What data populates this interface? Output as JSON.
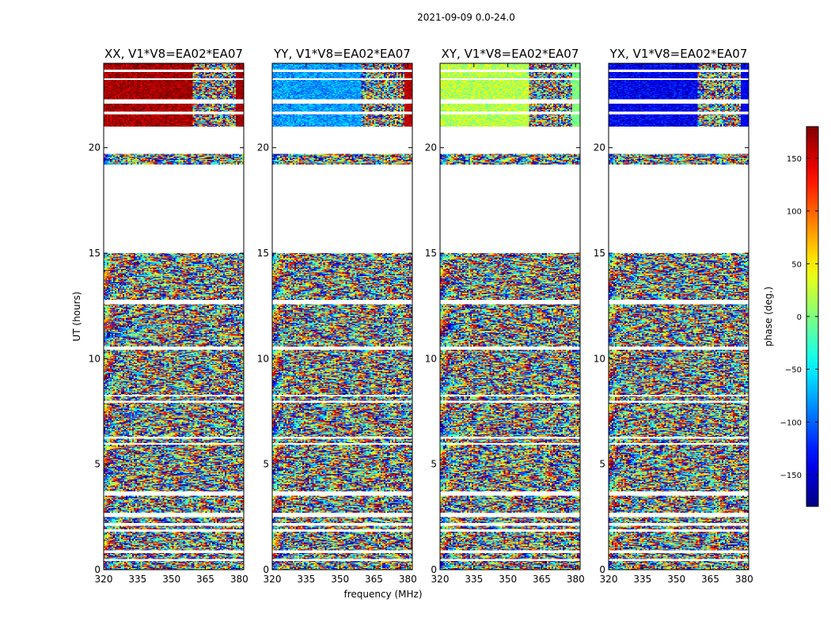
{
  "chart_data": {
    "type": "heatmap",
    "suptitle": "2021-09-09 0.0-24.0",
    "xlabel": "frequency (MHz)",
    "ylabel": "UT (hours)",
    "xlim": [
      320,
      382
    ],
    "ylim": [
      0,
      24
    ],
    "xticks": [
      320,
      335,
      350,
      365,
      380
    ],
    "yticks": [
      0,
      5,
      10,
      15,
      20
    ],
    "panels": [
      {
        "title": "XX, V1*V8=EA02*EA07",
        "pol": "XX",
        "lowband_phase": 170,
        "lowband_end_mhz": 359,
        "highband_phase": 170
      },
      {
        "title": "YY, V1*V8=EA02*EA07",
        "pol": "YY",
        "lowband_phase": -80,
        "lowband_end_mhz": 359,
        "highband_phase": 160
      },
      {
        "title": "XY, V1*V8=EA02*EA07",
        "pol": "XY",
        "lowband_phase": 20,
        "lowband_end_mhz": 359,
        "highband_phase": 0
      },
      {
        "title": "YX, V1*V8=EA02*EA07",
        "pol": "YX",
        "lowband_phase": -140,
        "lowband_end_mhz": 359,
        "highband_phase": -140
      }
    ],
    "blank_ut_ranges": [
      [
        19.1,
        19.2
      ],
      [
        19.7,
        21.0
      ],
      [
        15.0,
        19.1
      ],
      [
        12.6,
        12.8
      ],
      [
        10.4,
        10.6
      ],
      [
        8.2,
        8.3
      ],
      [
        7.9,
        8.0
      ],
      [
        6.2,
        6.3
      ],
      [
        5.9,
        6.0
      ],
      [
        3.5,
        3.7
      ],
      [
        2.5,
        2.7
      ],
      [
        2.1,
        2.2
      ],
      [
        1.8,
        1.9
      ],
      [
        0.8,
        0.9
      ],
      [
        0.4,
        0.5
      ],
      [
        21.6,
        21.7
      ],
      [
        22.1,
        22.3
      ],
      [
        23.2,
        23.3
      ],
      [
        23.6,
        23.7
      ]
    ],
    "colorbar": {
      "label": "phase (deg.)",
      "range": [
        -180,
        180
      ],
      "ticks": [
        150,
        100,
        50,
        0,
        -50,
        -100,
        -150
      ],
      "tick_labels": [
        "150",
        "100",
        "50",
        "0",
        "−50",
        "−100",
        "−150"
      ],
      "colormap": "jet"
    }
  }
}
